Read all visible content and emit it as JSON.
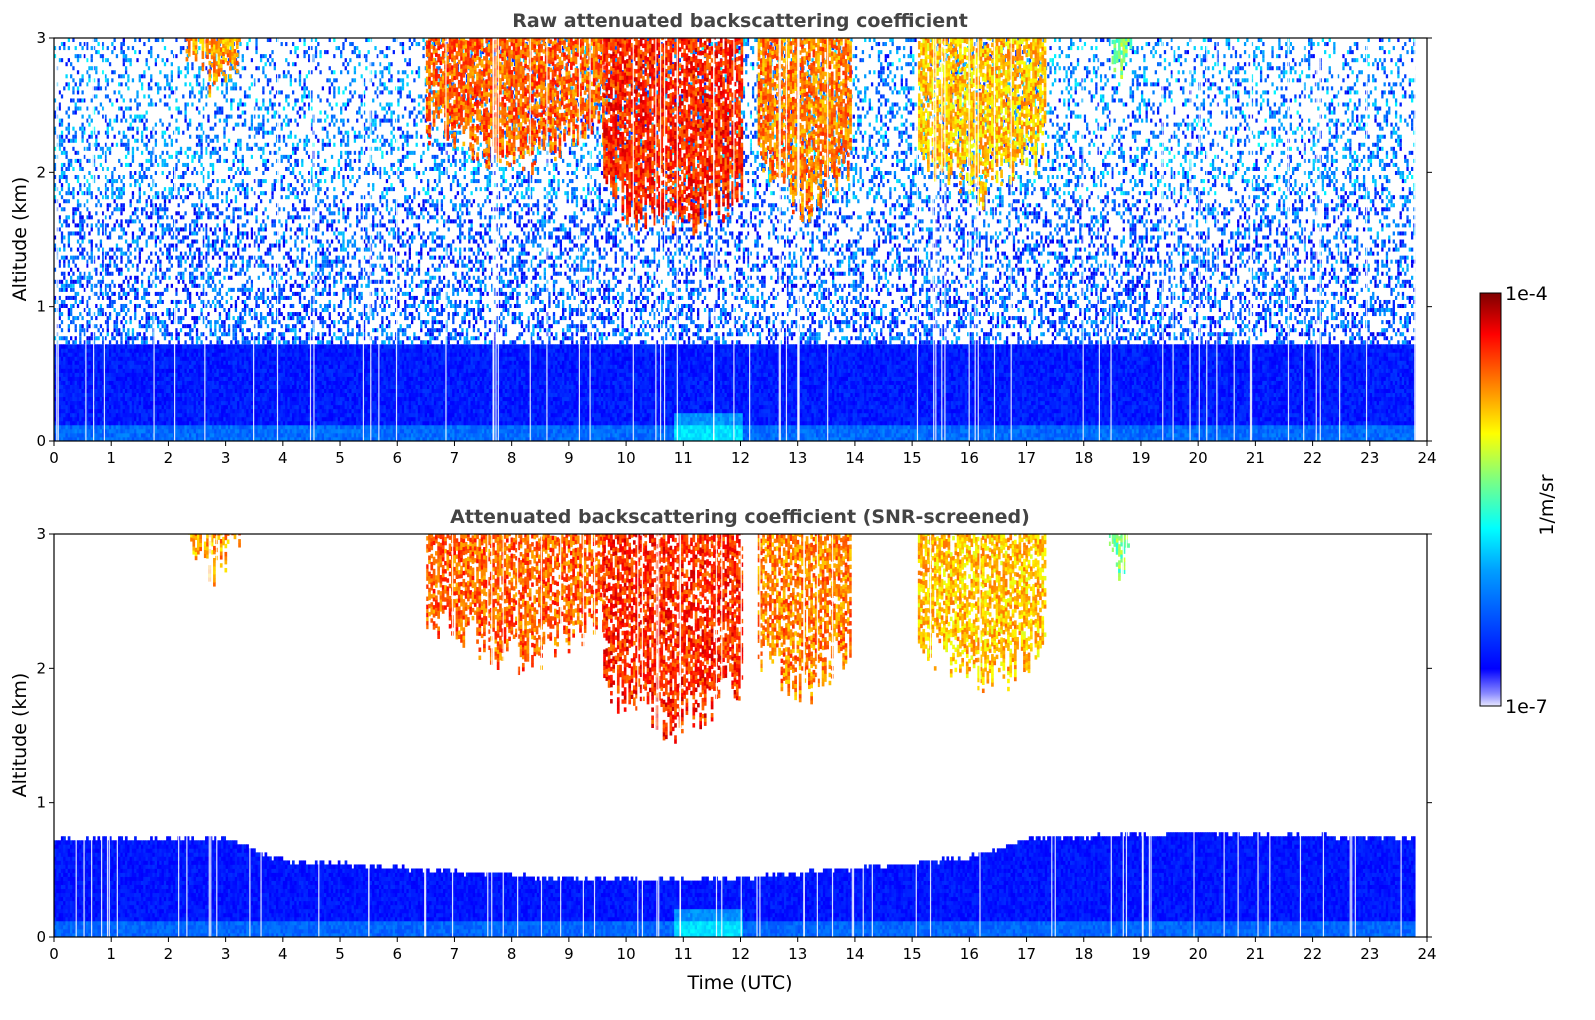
{
  "chart_data": [
    {
      "type": "heatmap",
      "title": "Raw attenuated backscattering coefficient",
      "xlabel": "",
      "ylabel": "Altitude (km)",
      "xlim": [
        0,
        24
      ],
      "ylim": [
        0,
        3
      ],
      "xticks": [
        "0",
        "1",
        "2",
        "3",
        "4",
        "5",
        "6",
        "7",
        "8",
        "9",
        "10",
        "11",
        "12",
        "13",
        "14",
        "15",
        "16",
        "17",
        "18",
        "19",
        "20",
        "21",
        "22",
        "23",
        "24"
      ],
      "yticks": [
        "0",
        "1",
        "2",
        "3"
      ],
      "data_end_time": 23.8,
      "layers": [
        {
          "name": "boundary-layer",
          "from_km": 0.0,
          "to_km": 0.72,
          "level": 0.1
        },
        {
          "name": "noise-background",
          "from_km": 0.72,
          "to_km": 3.0,
          "level": 0.2
        }
      ],
      "cloud_regions": [
        {
          "t0": 2.3,
          "t1": 3.3,
          "base_km": 2.5,
          "top_km": 3.0,
          "level": 0.72
        },
        {
          "t0": 6.5,
          "t1": 9.6,
          "base_km": 1.9,
          "top_km": 3.0,
          "level": 0.78
        },
        {
          "t0": 9.6,
          "t1": 12.0,
          "base_km": 1.4,
          "top_km": 3.0,
          "level": 0.84
        },
        {
          "t0": 12.3,
          "t1": 13.9,
          "base_km": 1.6,
          "top_km": 3.0,
          "level": 0.75
        },
        {
          "t0": 15.1,
          "t1": 17.3,
          "base_km": 1.7,
          "top_km": 3.0,
          "level": 0.68
        },
        {
          "t0": 18.4,
          "t1": 18.8,
          "base_km": 2.6,
          "top_km": 3.0,
          "level": 0.5
        }
      ],
      "grid": false
    },
    {
      "type": "heatmap",
      "title": "Attenuated backscattering coefficient (SNR-screened)",
      "xlabel": "Time (UTC)",
      "ylabel": "Altitude (km)",
      "xlim": [
        0,
        24
      ],
      "ylim": [
        0,
        3
      ],
      "xticks": [
        "0",
        "1",
        "2",
        "3",
        "4",
        "5",
        "6",
        "7",
        "8",
        "9",
        "10",
        "11",
        "12",
        "13",
        "14",
        "15",
        "16",
        "17",
        "18",
        "19",
        "20",
        "21",
        "22",
        "23",
        "24"
      ],
      "yticks": [
        "0",
        "1",
        "2",
        "3"
      ],
      "data_end_time": 23.8,
      "boundary_layer_top_km": [
        {
          "t": 0,
          "km": 0.72
        },
        {
          "t": 3,
          "km": 0.72
        },
        {
          "t": 4,
          "km": 0.55
        },
        {
          "t": 6,
          "km": 0.5
        },
        {
          "t": 9,
          "km": 0.42
        },
        {
          "t": 12,
          "km": 0.42
        },
        {
          "t": 14,
          "km": 0.5
        },
        {
          "t": 16,
          "km": 0.58
        },
        {
          "t": 17,
          "km": 0.72
        },
        {
          "t": 20,
          "km": 0.76
        },
        {
          "t": 23.8,
          "km": 0.72
        }
      ],
      "cloud_regions": [
        {
          "t0": 2.3,
          "t1": 3.3,
          "base_km": 2.55,
          "top_km": 3.0,
          "level": 0.72
        },
        {
          "t0": 6.5,
          "t1": 9.6,
          "base_km": 1.9,
          "top_km": 3.0,
          "level": 0.78
        },
        {
          "t0": 9.6,
          "t1": 12.0,
          "base_km": 1.4,
          "top_km": 3.0,
          "level": 0.84
        },
        {
          "t0": 12.3,
          "t1": 13.9,
          "base_km": 1.65,
          "top_km": 3.0,
          "level": 0.75
        },
        {
          "t0": 15.1,
          "t1": 17.3,
          "base_km": 1.7,
          "top_km": 3.0,
          "level": 0.68
        },
        {
          "t0": 18.4,
          "t1": 18.8,
          "base_km": 2.5,
          "top_km": 3.0,
          "level": 0.5
        }
      ],
      "grid": false
    }
  ],
  "colorbar": {
    "min_label": "1e-7",
    "max_label": "1e-4",
    "unit_label": "1/m/sr",
    "colormap": "jet",
    "scale": "log",
    "colors": [
      "#00007f",
      "#0000ff",
      "#007fff",
      "#00ffff",
      "#7fff7f",
      "#ffff00",
      "#ff7f00",
      "#ff0000",
      "#7f0000"
    ]
  }
}
